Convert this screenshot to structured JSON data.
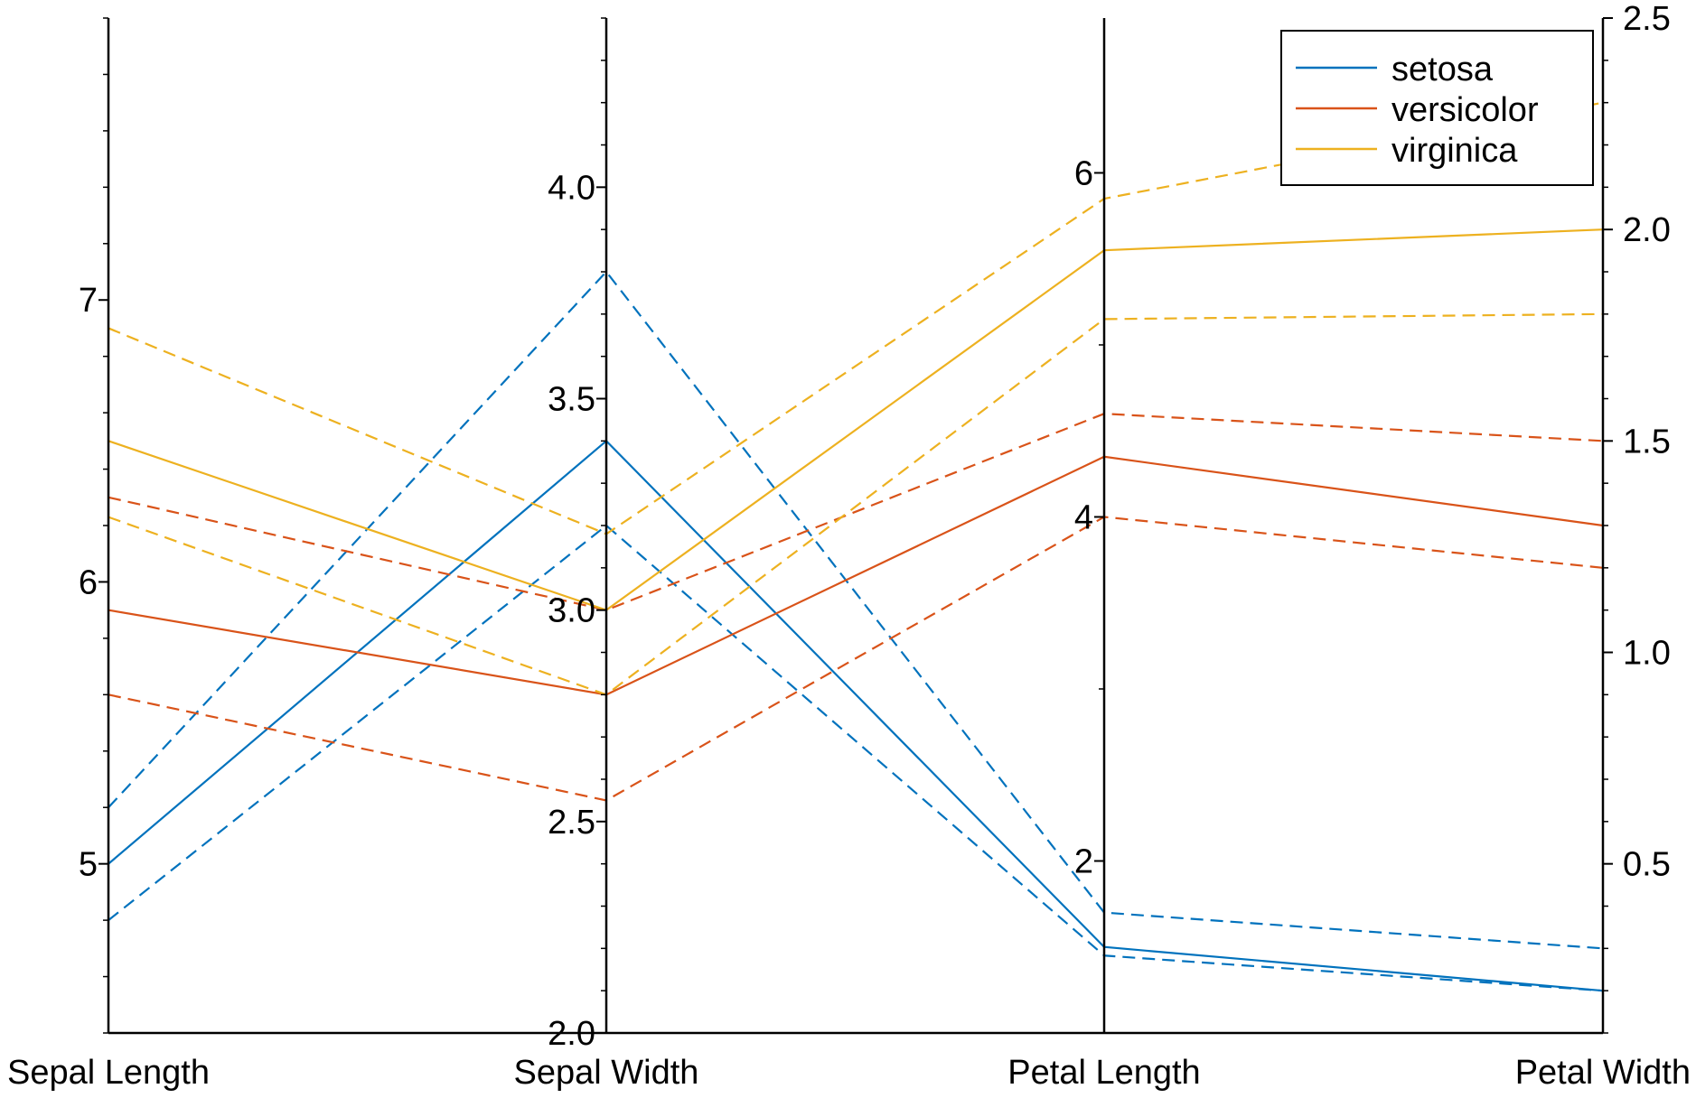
{
  "chart_data": {
    "type": "parallel-coordinates",
    "title": "",
    "axes": [
      {
        "name": "Sepal Length",
        "range": [
          4.4,
          8.0
        ],
        "major_ticks": [
          5,
          6,
          7
        ],
        "major_labels": [
          "5",
          "6",
          "7"
        ],
        "minor_step": 0.2
      },
      {
        "name": "Sepal Width",
        "range": [
          2.0,
          4.4
        ],
        "major_ticks": [
          2.0,
          2.5,
          3.0,
          3.5,
          4.0
        ],
        "major_labels": [
          "2.0",
          "2.5",
          "3.0",
          "3.5",
          "4.0"
        ],
        "minor_step": 0.1
      },
      {
        "name": "Petal Length",
        "range": [
          1.0,
          6.9
        ],
        "major_ticks": [
          2,
          4,
          6
        ],
        "major_labels": [
          "2",
          "4",
          "6"
        ],
        "minor_step": 1
      },
      {
        "name": "Petal Width",
        "range": [
          0.1,
          2.5
        ],
        "major_ticks": [
          0.5,
          1.0,
          1.5,
          2.0,
          2.5
        ],
        "major_labels": [
          "0.5",
          "1.0",
          "1.5",
          "2.0",
          "2.5"
        ],
        "minor_step": 0.1
      }
    ],
    "legend": {
      "position": "top-right",
      "entries": [
        {
          "name": "setosa",
          "color": "#0072BD"
        },
        {
          "name": "versicolor",
          "color": "#D95319"
        },
        {
          "name": "virginica",
          "color": "#EDB120"
        }
      ]
    },
    "series": [
      {
        "group": "setosa",
        "style": "solid",
        "values": [
          5.0,
          3.4,
          1.5,
          0.2
        ]
      },
      {
        "group": "setosa",
        "style": "dashed",
        "values": [
          5.2,
          3.8,
          1.7,
          0.3
        ]
      },
      {
        "group": "setosa",
        "style": "dashed",
        "values": [
          4.8,
          3.2,
          1.45,
          0.2
        ]
      },
      {
        "group": "versicolor",
        "style": "solid",
        "values": [
          5.9,
          2.8,
          4.35,
          1.3
        ]
      },
      {
        "group": "versicolor",
        "style": "dashed",
        "values": [
          6.3,
          3.0,
          4.6,
          1.5
        ]
      },
      {
        "group": "versicolor",
        "style": "dashed",
        "values": [
          5.6,
          2.55,
          4.0,
          1.2
        ]
      },
      {
        "group": "virginica",
        "style": "solid",
        "values": [
          6.5,
          3.0,
          5.55,
          2.0
        ]
      },
      {
        "group": "virginica",
        "style": "dashed",
        "values": [
          6.9,
          3.18,
          5.85,
          2.3
        ]
      },
      {
        "group": "virginica",
        "style": "dashed",
        "values": [
          6.23,
          2.8,
          5.15,
          1.8
        ]
      }
    ]
  }
}
